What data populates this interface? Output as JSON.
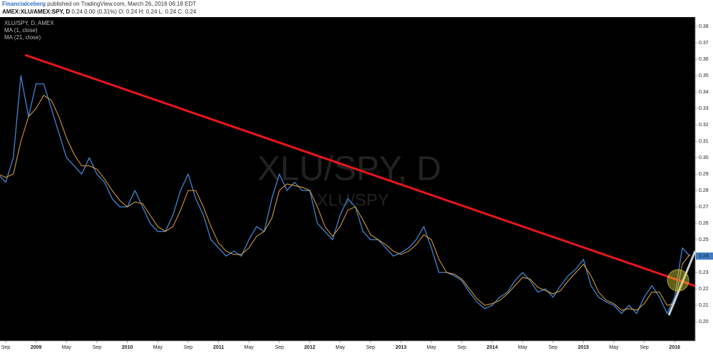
{
  "header": {
    "publisher": "Financialceberg",
    "published_line": "published on TradingView.com, March 26, 2016 06:18 EDT",
    "symbol_line": "AMEX:XLU/AMEX:SPY, D",
    "quote_line": "0.24 0.00 (0.31%) O: 0.24 H: 0.24 L: 0.24 C: 0.24"
  },
  "chart_data": {
    "type": "line",
    "title": "XLU/SPY, D, AMEX",
    "watermark": "XLU/SPY, D",
    "watermark_sub": "XLU/SPY",
    "last_price": 0.24,
    "ylim": [
      0.1883,
      0.3857
    ],
    "yticks": [
      {
        "value": 0.2,
        "label": "0.20"
      },
      0.21,
      0.22,
      0.23,
      0.24,
      0.25,
      0.26,
      0.27,
      0.28,
      0.29,
      {
        "value": 0.3,
        "label": "0.30"
      },
      0.31,
      0.32,
      0.33,
      0.34,
      0.35,
      0.36,
      0.37,
      0.38
    ],
    "xlim": [
      0.25,
      91.7
    ],
    "xticks": [
      {
        "value": 1,
        "label": "Sep"
      },
      {
        "value": 5,
        "label": "2009"
      },
      {
        "value": 9,
        "label": "May"
      },
      {
        "value": 13,
        "label": "Sep"
      },
      {
        "value": 17,
        "label": "2010"
      },
      {
        "value": 21,
        "label": "May"
      },
      {
        "value": 25,
        "label": "Sep"
      },
      {
        "value": 29,
        "label": "2011"
      },
      {
        "value": 33,
        "label": "May"
      },
      {
        "value": 37,
        "label": "Sep"
      },
      {
        "value": 41,
        "label": "2012"
      },
      {
        "value": 45,
        "label": "May"
      },
      {
        "value": 49,
        "label": "Sep"
      },
      {
        "value": 53,
        "label": "2013"
      },
      {
        "value": 57,
        "label": "May"
      },
      {
        "value": 61,
        "label": "Sep"
      },
      {
        "value": 65,
        "label": "2014"
      },
      {
        "value": 69,
        "label": "May"
      },
      {
        "value": 73,
        "label": "Sep"
      },
      {
        "value": 77,
        "label": "2015"
      },
      {
        "value": 81,
        "label": "May"
      },
      {
        "value": 85,
        "label": "Sep"
      },
      {
        "value": 89,
        "label": "2016"
      }
    ],
    "series": [
      {
        "name": "MA (1, close)",
        "color": "#3b7dc4",
        "values": [
          0.29,
          0.285,
          0.3,
          0.35,
          0.325,
          0.345,
          0.345,
          0.33,
          0.315,
          0.3,
          0.295,
          0.29,
          0.3,
          0.29,
          0.285,
          0.275,
          0.27,
          0.27,
          0.28,
          0.27,
          0.26,
          0.255,
          0.255,
          0.265,
          0.28,
          0.29,
          0.275,
          0.265,
          0.25,
          0.245,
          0.24,
          0.243,
          0.24,
          0.25,
          0.258,
          0.255,
          0.275,
          0.29,
          0.28,
          0.285,
          0.28,
          0.28,
          0.26,
          0.255,
          0.25,
          0.265,
          0.275,
          0.27,
          0.255,
          0.25,
          0.25,
          0.245,
          0.24,
          0.242,
          0.245,
          0.25,
          0.258,
          0.245,
          0.23,
          0.23,
          0.228,
          0.225,
          0.218,
          0.212,
          0.208,
          0.21,
          0.215,
          0.218,
          0.225,
          0.23,
          0.225,
          0.218,
          0.22,
          0.215,
          0.222,
          0.228,
          0.232,
          0.238,
          0.222,
          0.215,
          0.212,
          0.21,
          0.205,
          0.21,
          0.205,
          0.215,
          0.222,
          0.215,
          0.205,
          0.215,
          0.245,
          0.24
        ]
      },
      {
        "name": "MA (21, close)",
        "color": "#e8a33d",
        "values": [
          0.29,
          0.288,
          0.29,
          0.31,
          0.325,
          0.33,
          0.338,
          0.335,
          0.325,
          0.312,
          0.302,
          0.295,
          0.295,
          0.293,
          0.287,
          0.28,
          0.274,
          0.27,
          0.273,
          0.272,
          0.265,
          0.258,
          0.255,
          0.258,
          0.268,
          0.28,
          0.28,
          0.27,
          0.258,
          0.248,
          0.243,
          0.241,
          0.241,
          0.245,
          0.252,
          0.255,
          0.263,
          0.28,
          0.284,
          0.283,
          0.282,
          0.28,
          0.27,
          0.258,
          0.252,
          0.258,
          0.268,
          0.27,
          0.262,
          0.253,
          0.25,
          0.247,
          0.243,
          0.241,
          0.243,
          0.247,
          0.253,
          0.25,
          0.238,
          0.23,
          0.229,
          0.226,
          0.22,
          0.214,
          0.21,
          0.211,
          0.213,
          0.217,
          0.222,
          0.227,
          0.226,
          0.221,
          0.219,
          0.217,
          0.219,
          0.225,
          0.23,
          0.235,
          0.228,
          0.218,
          0.213,
          0.211,
          0.207,
          0.208,
          0.207,
          0.211,
          0.218,
          0.218,
          0.21,
          0.211,
          0.235,
          0.241
        ]
      }
    ]
  }
}
